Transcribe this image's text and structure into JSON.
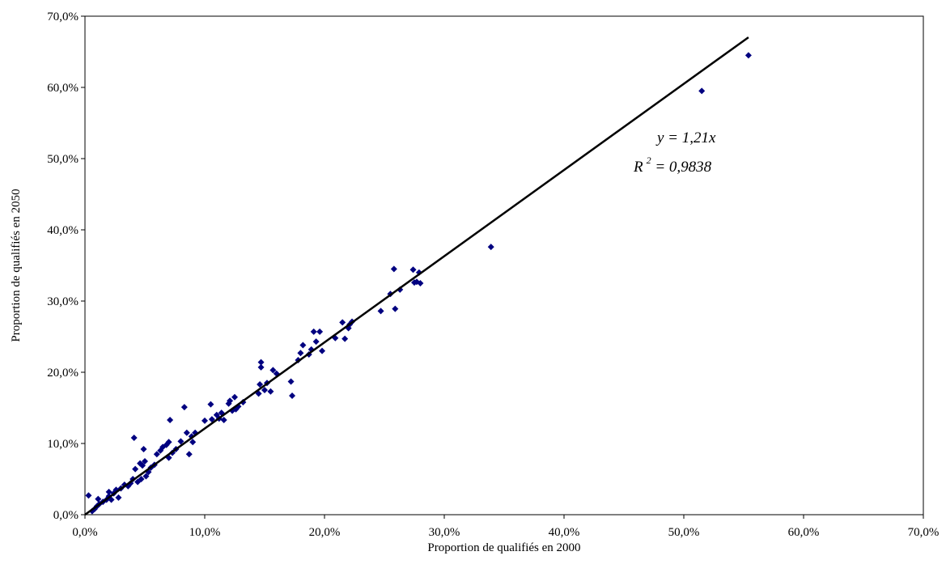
{
  "chart_data": {
    "type": "scatter",
    "title": "",
    "xlabel": "Proportion de qualifiés en 2000",
    "ylabel": "Proportion de qualifiés en 2050",
    "xlim": [
      0,
      70
    ],
    "ylim": [
      0,
      70
    ],
    "x_ticks": [
      "0,0%",
      "10,0%",
      "20,0%",
      "30,0%",
      "40,0%",
      "50,0%",
      "60,0%",
      "70,0%"
    ],
    "y_ticks": [
      "0,0%",
      "10,0%",
      "20,0%",
      "30,0%",
      "40,0%",
      "50,0%",
      "60,0%",
      "70,0%"
    ],
    "grid": false,
    "legend": "none",
    "marker": "diamond",
    "marker_color": "#000080",
    "line_color": "#000000",
    "trendline": {
      "slope": 1.21,
      "x_range": [
        0,
        55.4
      ],
      "equation_label": "y = 1,21x",
      "r2_prefix": "R",
      "r2_exponent": "2",
      "r2_value": " = 0,9838"
    },
    "points": [
      [
        0.3,
        2.7
      ],
      [
        0.6,
        0.5
      ],
      [
        0.8,
        0.8
      ],
      [
        1.0,
        1.2
      ],
      [
        1.2,
        1.5
      ],
      [
        1.1,
        2.2
      ],
      [
        1.5,
        1.8
      ],
      [
        1.8,
        2.1
      ],
      [
        2.0,
        2.6
      ],
      [
        2.0,
        3.2
      ],
      [
        2.2,
        2.1
      ],
      [
        2.4,
        3.0
      ],
      [
        2.6,
        3.5
      ],
      [
        2.8,
        2.4
      ],
      [
        3.0,
        3.7
      ],
      [
        3.3,
        4.2
      ],
      [
        3.6,
        4.0
      ],
      [
        3.8,
        4.4
      ],
      [
        4.0,
        5.0
      ],
      [
        4.1,
        10.8
      ],
      [
        4.2,
        6.4
      ],
      [
        4.4,
        4.6
      ],
      [
        4.6,
        7.2
      ],
      [
        4.7,
        5.0
      ],
      [
        4.8,
        6.9
      ],
      [
        4.9,
        9.2
      ],
      [
        5.0,
        7.5
      ],
      [
        5.1,
        5.4
      ],
      [
        5.3,
        6.0
      ],
      [
        5.5,
        6.6
      ],
      [
        5.8,
        7.0
      ],
      [
        6.0,
        8.5
      ],
      [
        6.3,
        9.0
      ],
      [
        6.5,
        9.5
      ],
      [
        6.8,
        9.8
      ],
      [
        7.0,
        8.0
      ],
      [
        7.0,
        10.2
      ],
      [
        7.1,
        13.3
      ],
      [
        7.3,
        8.7
      ],
      [
        7.6,
        9.2
      ],
      [
        8.0,
        10.3
      ],
      [
        8.3,
        15.1
      ],
      [
        8.5,
        11.5
      ],
      [
        8.7,
        8.5
      ],
      [
        8.9,
        11.0
      ],
      [
        9.0,
        10.2
      ],
      [
        9.2,
        11.5
      ],
      [
        10.0,
        13.2
      ],
      [
        10.5,
        15.5
      ],
      [
        10.6,
        13.4
      ],
      [
        11.0,
        14.0
      ],
      [
        11.2,
        13.5
      ],
      [
        11.4,
        14.3
      ],
      [
        11.6,
        13.3
      ],
      [
        12.0,
        15.6
      ],
      [
        12.1,
        16.0
      ],
      [
        12.3,
        14.6
      ],
      [
        12.5,
        16.5
      ],
      [
        12.6,
        14.8
      ],
      [
        12.8,
        15.2
      ],
      [
        13.2,
        15.8
      ],
      [
        14.5,
        17.0
      ],
      [
        14.6,
        18.3
      ],
      [
        14.7,
        20.7
      ],
      [
        14.7,
        21.4
      ],
      [
        15.0,
        17.5
      ],
      [
        15.2,
        18.5
      ],
      [
        15.5,
        17.3
      ],
      [
        15.7,
        20.3
      ],
      [
        16.0,
        19.8
      ],
      [
        17.2,
        18.7
      ],
      [
        17.3,
        16.7
      ],
      [
        17.8,
        21.7
      ],
      [
        18.0,
        22.7
      ],
      [
        18.2,
        23.8
      ],
      [
        18.7,
        22.5
      ],
      [
        18.9,
        23.2
      ],
      [
        19.1,
        25.7
      ],
      [
        19.3,
        24.3
      ],
      [
        19.6,
        25.7
      ],
      [
        19.8,
        23.0
      ],
      [
        20.9,
        24.8
      ],
      [
        21.5,
        27.0
      ],
      [
        21.7,
        24.7
      ],
      [
        22.0,
        26.2
      ],
      [
        22.1,
        26.7
      ],
      [
        22.3,
        27.1
      ],
      [
        24.7,
        28.6
      ],
      [
        25.5,
        31.0
      ],
      [
        25.8,
        34.5
      ],
      [
        25.9,
        28.9
      ],
      [
        26.3,
        31.6
      ],
      [
        27.4,
        34.4
      ],
      [
        27.5,
        32.6
      ],
      [
        27.7,
        32.7
      ],
      [
        27.9,
        34.0
      ],
      [
        28.0,
        32.5
      ],
      [
        33.9,
        37.6
      ],
      [
        51.5,
        59.5
      ],
      [
        55.4,
        64.5
      ]
    ]
  }
}
